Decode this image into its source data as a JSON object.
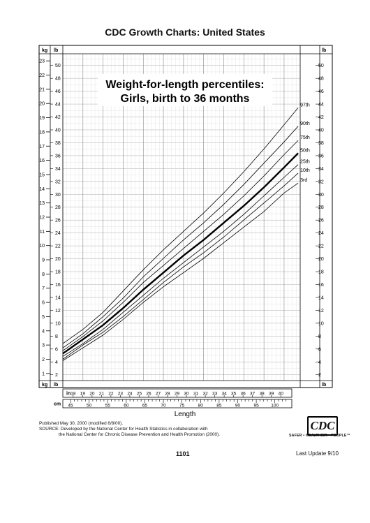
{
  "page_title": "CDC Growth Charts: United States",
  "chart_title_line1": "Weight-for-length percentiles:",
  "chart_title_line2": "Girls, birth to 36 months",
  "unit_labels": {
    "kg": "kg",
    "lb": "lb",
    "in": "in",
    "cm": "cm"
  },
  "length_label": "Length",
  "in_ticks": [
    "18",
    "19",
    "20",
    "21",
    "22",
    "23",
    "24",
    "25",
    "26",
    "27",
    "28",
    "29",
    "30",
    "31",
    "32",
    "33",
    "34",
    "35",
    "36",
    "37",
    "38",
    "39",
    "40"
  ],
  "cm_ticks": [
    "45",
    "50",
    "55",
    "60",
    "65",
    "70",
    "75",
    "80",
    "85",
    "90",
    "95",
    "100"
  ],
  "footer": {
    "published": "Published May 30, 2000 (modified 6/8/00).",
    "source_line1": "SOURCE: Developed by the National Center for Health Statistics in collaboration with",
    "source_line2": "the National Center for Chronic Disease Prevention and Health Promotion (2000).",
    "logo_text": "CDC",
    "tagline": "SAFER • HEALTHIER • PEOPLE™",
    "page_number": "1101",
    "last_update": "Last Update 9/10"
  },
  "chart_data": {
    "type": "line",
    "title": "Weight-for-length percentiles: Girls, birth to 36 months",
    "xlabel": "Length",
    "x_unit": "cm",
    "y_unit_left": "kg",
    "y_unit_right": "lb",
    "xlim": [
      45,
      104
    ],
    "ylim_kg": [
      0.5,
      23.5
    ],
    "ylim_lb": [
      1,
      52
    ],
    "kg_ticks": [
      1,
      2,
      3,
      4,
      5,
      6,
      7,
      8,
      9,
      10,
      11,
      12,
      13,
      14,
      15,
      16,
      17,
      18,
      19,
      20,
      21,
      22,
      23
    ],
    "lb_ticks_left": [
      2,
      4,
      6,
      8,
      10,
      12,
      14,
      16,
      18,
      20,
      22,
      24,
      26,
      28,
      30,
      32,
      34,
      36,
      38,
      40,
      42,
      44,
      46,
      48,
      50
    ],
    "lb_ticks_right": [
      2,
      4,
      6,
      8,
      10,
      12,
      14,
      16,
      18,
      20,
      22,
      24,
      26,
      28,
      30,
      32,
      34,
      36,
      38,
      40,
      42,
      44,
      46,
      48,
      50
    ],
    "x": [
      45,
      50,
      55,
      60,
      65,
      70,
      75,
      80,
      85,
      90,
      95,
      100,
      103.5
    ],
    "series": [
      {
        "name": "3rd",
        "values": [
          1.9,
          2.8,
          3.7,
          4.8,
          6.0,
          7.1,
          8.1,
          9.1,
          10.2,
          11.3,
          12.4,
          13.7,
          14.4
        ]
      },
      {
        "name": "10th",
        "values": [
          2.0,
          3.0,
          3.9,
          5.0,
          6.2,
          7.4,
          8.5,
          9.5,
          10.6,
          11.8,
          13.0,
          14.2,
          15.1
        ]
      },
      {
        "name": "25th",
        "values": [
          2.2,
          3.1,
          4.1,
          5.3,
          6.5,
          7.7,
          8.8,
          9.9,
          11.0,
          12.2,
          13.5,
          14.8,
          15.7
        ]
      },
      {
        "name": "50th",
        "values": [
          2.4,
          3.4,
          4.4,
          5.6,
          6.9,
          8.1,
          9.3,
          10.4,
          11.6,
          12.8,
          14.1,
          15.5,
          16.5
        ]
      },
      {
        "name": "75th",
        "values": [
          2.6,
          3.6,
          4.7,
          6.0,
          7.4,
          8.6,
          9.8,
          11.0,
          12.2,
          13.5,
          14.9,
          16.4,
          17.4
        ]
      },
      {
        "name": "90th",
        "values": [
          2.8,
          3.8,
          5.0,
          6.3,
          7.8,
          9.1,
          10.4,
          11.6,
          12.9,
          14.3,
          15.8,
          17.3,
          18.4
        ]
      },
      {
        "name": "97th",
        "values": [
          3.1,
          4.1,
          5.3,
          6.8,
          8.3,
          9.7,
          11.0,
          12.3,
          13.7,
          15.2,
          16.8,
          18.5,
          19.7
        ]
      }
    ],
    "grid": true,
    "legend": "labels at right end of curves"
  }
}
